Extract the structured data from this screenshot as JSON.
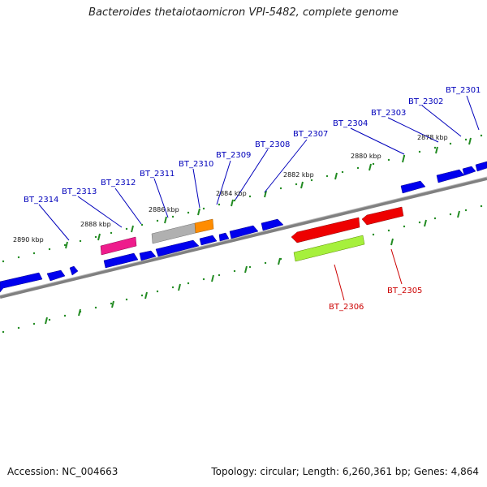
{
  "title": "Bacteroides thetaiotaomicron VPI-5482, complete genome",
  "accession_text": "Accession: NC_004663",
  "genome_info_text": "Topology: circular; Length: 6,260,361 bp; Genes: 4,864",
  "colors": {
    "forward_gene": "#0000ee",
    "reverse_gene": "#ee0000",
    "backbone": "#808080",
    "tick": "#228b22",
    "forward_label": "#0000bb",
    "reverse_label": "#cc0000"
  },
  "scale_ticks": [
    {
      "label": "2878 kbp"
    },
    {
      "label": "2880 kbp"
    },
    {
      "label": "2882 kbp"
    },
    {
      "label": "2884 kbp"
    },
    {
      "label": "2886 kbp"
    },
    {
      "label": "2888 kbp"
    },
    {
      "label": "2890 kbp"
    }
  ],
  "gene_labels": [
    {
      "id": "BT_2301",
      "strand": "forward"
    },
    {
      "id": "BT_2302",
      "strand": "forward"
    },
    {
      "id": "BT_2303",
      "strand": "forward"
    },
    {
      "id": "BT_2304",
      "strand": "forward"
    },
    {
      "id": "BT_2307",
      "strand": "forward"
    },
    {
      "id": "BT_2308",
      "strand": "forward"
    },
    {
      "id": "BT_2309",
      "strand": "forward"
    },
    {
      "id": "BT_2310",
      "strand": "forward"
    },
    {
      "id": "BT_2311",
      "strand": "forward"
    },
    {
      "id": "BT_2312",
      "strand": "forward"
    },
    {
      "id": "BT_2313",
      "strand": "forward"
    },
    {
      "id": "BT_2314",
      "strand": "forward"
    },
    {
      "id": "BT_2305",
      "strand": "reverse"
    },
    {
      "id": "BT_2306",
      "strand": "reverse"
    }
  ]
}
